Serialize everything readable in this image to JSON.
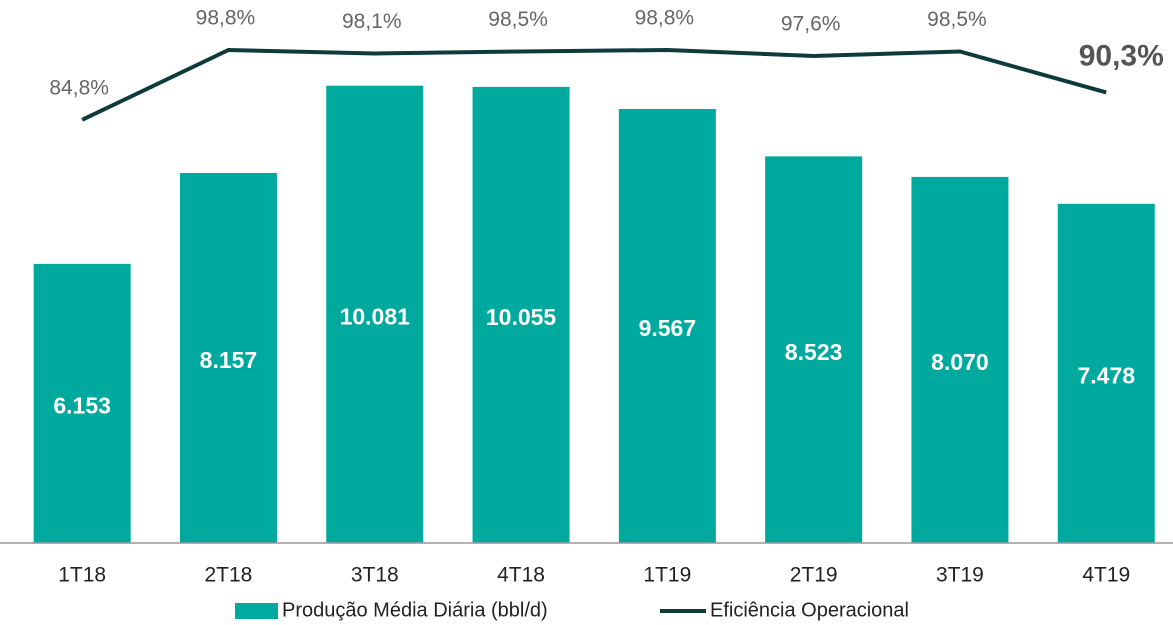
{
  "chart_data": {
    "type": "bar-line",
    "categories": [
      "1T18",
      "2T18",
      "3T18",
      "4T18",
      "1T19",
      "2T19",
      "3T19",
      "4T19"
    ],
    "series": [
      {
        "name": "Produção Média Diária (bbl/d)",
        "type": "bar",
        "color": "#00a99d",
        "values": [
          6153,
          8157,
          10081,
          10055,
          9567,
          8523,
          8070,
          7478
        ],
        "value_labels": [
          "6.153",
          "8.157",
          "10.081",
          "10.055",
          "9.567",
          "8.523",
          "8.070",
          "7.478"
        ]
      },
      {
        "name": "Eficiência Operacional",
        "type": "line",
        "axis": "y2",
        "color": "#0d3b3c",
        "values": [
          84.8,
          98.8,
          98.1,
          98.5,
          98.8,
          97.6,
          98.5,
          90.3
        ],
        "value_labels": [
          "84,8%",
          "98,8%",
          "98,1%",
          "98,5%",
          "98,8%",
          "97,6%",
          "98,5%",
          "90,3%"
        ]
      }
    ],
    "ylim": [
      0,
      11000
    ],
    "y2lim": [
      0,
      100
    ],
    "legend": "bottom"
  }
}
